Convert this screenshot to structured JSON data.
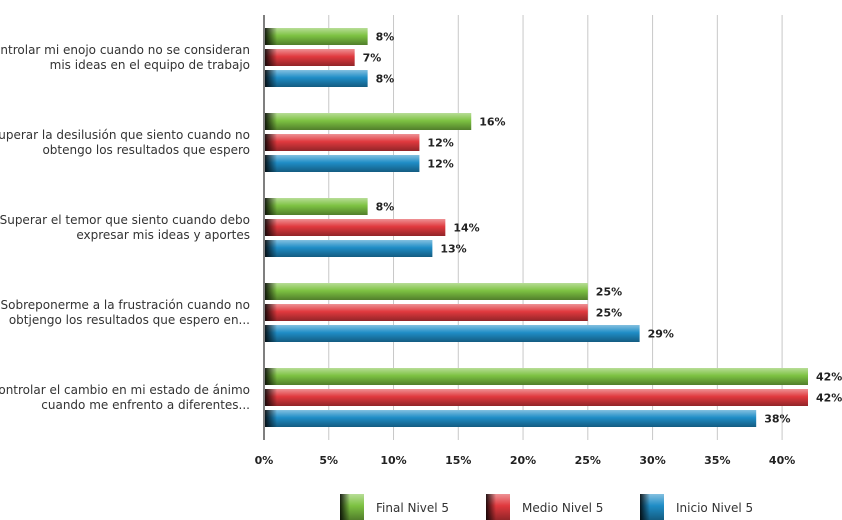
{
  "chart_data": {
    "type": "bar",
    "orientation": "horizontal",
    "categories": [
      [
        "Controlar mi enojo cuando no se consideran",
        "mis ideas en el equipo de trabajo"
      ],
      [
        "Superar la desilusión que siento cuando no",
        "obtengo los resultados que espero"
      ],
      [
        "Superar el temor que siento cuando debo",
        "expresar mis ideas y aportes"
      ],
      [
        "Sobreponerme a la frustración cuando no",
        "obtjengo los resultados que espero en..."
      ],
      [
        "Controlar el cambio en mi estado de ánimo",
        "cuando me enfrento a diferentes..."
      ]
    ],
    "series": [
      {
        "name": "Final Nivel 5",
        "color": "#7dc242",
        "values": [
          8,
          16,
          8,
          25,
          42
        ]
      },
      {
        "name": "Medio Nivel 5",
        "color": "#e0393e",
        "values": [
          7,
          12,
          14,
          25,
          42
        ]
      },
      {
        "name": "Inicio Nivel 5",
        "color": "#1f8dc6",
        "values": [
          8,
          12,
          13,
          29,
          38
        ]
      }
    ],
    "xlim": [
      0,
      42
    ],
    "xticks": [
      0,
      5,
      10,
      15,
      20,
      25,
      30,
      35,
      40
    ],
    "tick_suffix": "%",
    "value_suffix": "%",
    "grid": true,
    "legend_position": "bottom",
    "title": "",
    "xlabel": "",
    "ylabel": ""
  }
}
